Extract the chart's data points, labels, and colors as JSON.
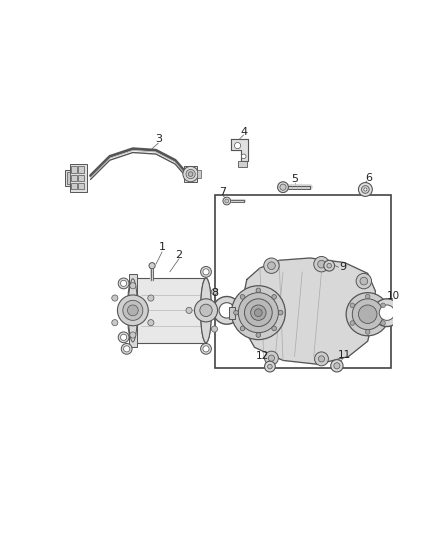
{
  "bg_color": "#ffffff",
  "line_color": "#555555",
  "label_color": "#222222",
  "fig_width": 4.38,
  "fig_height": 5.33,
  "dpi": 100,
  "part3_label": "3",
  "part4_label": "4",
  "part5_label": "5",
  "part6_label": "6",
  "part7_label": "7",
  "part1_label": "1",
  "part2_label": "2",
  "part8_label": "8",
  "part9_label": "9",
  "part10_label": "10",
  "part11_label": "11",
  "part12_label": "12"
}
